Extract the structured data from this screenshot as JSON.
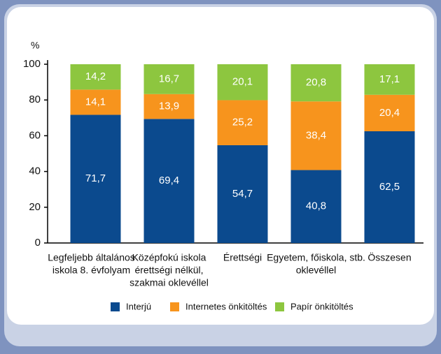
{
  "chart_data": {
    "type": "stacked-bar",
    "ylabel": "%",
    "categories": [
      [
        "Legfeljebb általános",
        "iskola 8. évfolyam"
      ],
      [
        "Középfokú iskola",
        "érettségi nélkül,",
        "szakmai oklevéllel"
      ],
      [
        "Érettségi"
      ],
      [
        "Egyetem, főiskola, stb.",
        "oklevéllel"
      ],
      [
        "Összesen"
      ]
    ],
    "series": [
      {
        "name": "Interjú",
        "color": "#0b4a8e",
        "values": [
          71.7,
          69.4,
          54.7,
          40.8,
          62.5
        ],
        "value_labels": [
          "71,7",
          "69,4",
          "54,7",
          "40,8",
          "62,5"
        ]
      },
      {
        "name": "Internetes önkitöltés",
        "color": "#f7941d",
        "values": [
          14.1,
          13.9,
          25.2,
          38.4,
          20.4
        ],
        "value_labels": [
          "14,1",
          "13,9",
          "25,2",
          "38,4",
          "20,4"
        ]
      },
      {
        "name": "Papír önkitöltés",
        "color": "#8dc63f",
        "values": [
          14.2,
          16.7,
          20.1,
          20.8,
          17.1
        ],
        "value_labels": [
          "14,2",
          "16,7",
          "20,1",
          "20,8",
          "17,1"
        ]
      }
    ],
    "ylim": [
      0,
      100
    ],
    "yticks": [
      0,
      20,
      40,
      60,
      80,
      100
    ],
    "grid": false,
    "legend": "bottom"
  }
}
